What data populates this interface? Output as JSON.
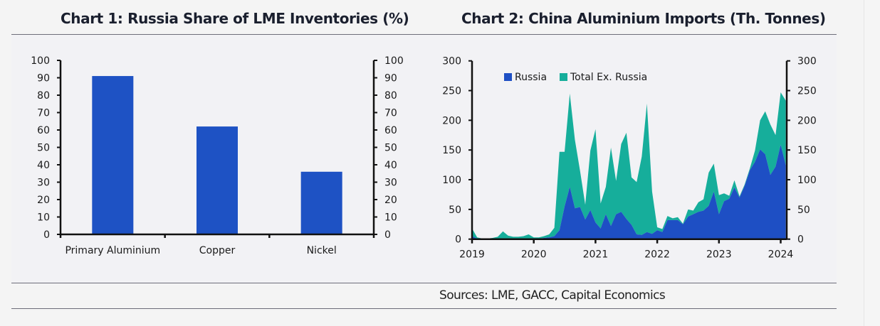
{
  "header": {
    "chart1_title": "Chart 1: Russia Share of LME Inventories (%)",
    "chart2_title": "Chart 2: China Aluminium Imports (Th. Tonnes)"
  },
  "footer": {
    "sources": "Sources: LME, GACC, Capital Economics"
  },
  "colors": {
    "bar": "#1e52c4",
    "russia": "#1e4fc4",
    "total_ex_russia": "#16ae9b",
    "axis": "#111111"
  },
  "chart_data": [
    {
      "type": "bar",
      "title": "Chart 1: Russia Share of LME Inventories (%)",
      "categories": [
        "Primary Aluminium",
        "Copper",
        "Nickel"
      ],
      "values": [
        91,
        62,
        36
      ],
      "xlabel": "",
      "ylabel": "",
      "ylim": [
        0,
        100
      ],
      "yticks": [
        0,
        10,
        20,
        30,
        40,
        50,
        60,
        70,
        80,
        90,
        100
      ],
      "ytick_labels": [
        "0",
        "10",
        "20",
        "30",
        "40",
        "50",
        "60",
        "70",
        "80",
        "90",
        "100"
      ],
      "dual_y_axis": true,
      "grid": false,
      "legend": "none"
    },
    {
      "type": "area",
      "stacked": true,
      "title": "Chart 2: China Aluminium Imports (Th. Tonnes)",
      "x_start": "2019-01",
      "x_frequency": "monthly",
      "xlim": [
        "2019-01",
        "2024-02"
      ],
      "xticks": [
        "2019",
        "2020",
        "2021",
        "2022",
        "2023",
        "2024"
      ],
      "ylim": [
        0,
        300
      ],
      "yticks": [
        0,
        50,
        100,
        150,
        200,
        250,
        300
      ],
      "ytick_labels": [
        "0",
        "50",
        "100",
        "150",
        "200",
        "250",
        "300"
      ],
      "dual_y_axis": true,
      "grid": false,
      "legend": "top-left",
      "series": [
        {
          "name": "Russia",
          "values": [
            5,
            1,
            0,
            0,
            0,
            1,
            1,
            1,
            1,
            1,
            1,
            1,
            1,
            1,
            2,
            3,
            5,
            15,
            55,
            88,
            52,
            54,
            33,
            49,
            28,
            18,
            42,
            22,
            42,
            46,
            34,
            24,
            8,
            7,
            12,
            9,
            15,
            12,
            32,
            32,
            32,
            25,
            38,
            42,
            46,
            48,
            56,
            80,
            42,
            64,
            68,
            87,
            70,
            90,
            116,
            130,
            151,
            143,
            108,
            122,
            159,
            124
          ]
        },
        {
          "name": "Total Ex. Russia",
          "values": [
            13,
            2,
            1,
            1,
            2,
            3,
            12,
            5,
            3,
            3,
            4,
            7,
            2,
            2,
            3,
            5,
            14,
            132,
            92,
            157,
            115,
            61,
            25,
            100,
            157,
            42,
            46,
            132,
            56,
            114,
            145,
            80,
            88,
            132,
            216,
            71,
            5,
            5,
            7,
            3,
            5,
            1,
            12,
            6,
            16,
            19,
            56,
            47,
            32,
            13,
            5,
            12,
            2,
            2,
            3,
            19,
            49,
            72,
            85,
            53,
            88,
            109
          ]
        }
      ]
    }
  ]
}
